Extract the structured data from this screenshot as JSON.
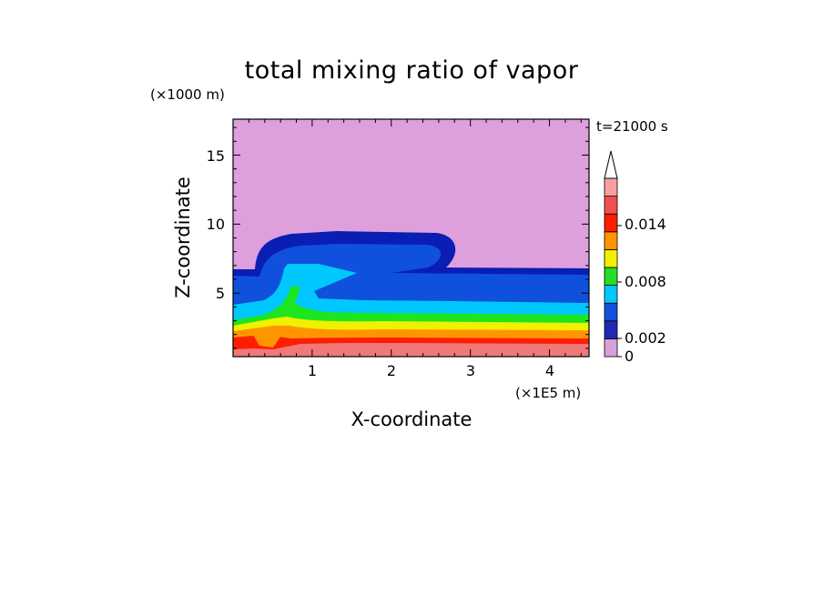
{
  "chart_data": {
    "type": "heatmap",
    "title": "total mixing ratio of vapor",
    "xlabel": "X-coordinate",
    "ylabel": "Z-coordinate",
    "x_unit": "(×1E5 m)",
    "y_unit": "(×1000 m)",
    "time_label": "t=21000 s",
    "xlim": [
      0,
      4.5
    ],
    "ylim": [
      0.4,
      17.6
    ],
    "x_ticks": [
      1,
      2,
      3,
      4
    ],
    "y_ticks": [
      5,
      10,
      15
    ],
    "colorbar": {
      "levels": [
        0,
        0.001,
        0.002,
        0.004,
        0.006,
        0.008,
        0.01,
        0.012,
        0.014,
        0.016
      ],
      "tick_labels": [
        {
          "value": 0,
          "label": "0"
        },
        {
          "value": 0.002,
          "label": "0.002"
        },
        {
          "value": 0.008,
          "label": "0.008"
        },
        {
          "value": 0.014,
          "label": "0.014"
        }
      ],
      "colors": [
        "#d8a0d8",
        "#1e28b4",
        "#1450dc",
        "#00c8ff",
        "#28dc28",
        "#f0f000",
        "#ff9600",
        "#ff1e00",
        "#f05050",
        "#f8a0a0"
      ],
      "extend": "max"
    },
    "contour_bands": [
      {
        "level": "<0.001",
        "color": "#dda0dd"
      },
      {
        "level": "0.001-0.002",
        "color": "#0a1eb4"
      },
      {
        "level": "0.002-0.004",
        "color": "#0f50dc"
      },
      {
        "level": "0.004-0.006",
        "color": "#00c8ff"
      },
      {
        "level": "0.006-0.008",
        "color": "#1ee61e"
      },
      {
        "level": "0.008-0.010",
        "color": "#f0f000"
      },
      {
        "level": "0.010-0.012",
        "color": "#ff9600"
      },
      {
        "level": "0.012-0.014",
        "color": "#ff1e00"
      },
      {
        "level": ">0.014",
        "color": "#f07878"
      }
    ]
  }
}
